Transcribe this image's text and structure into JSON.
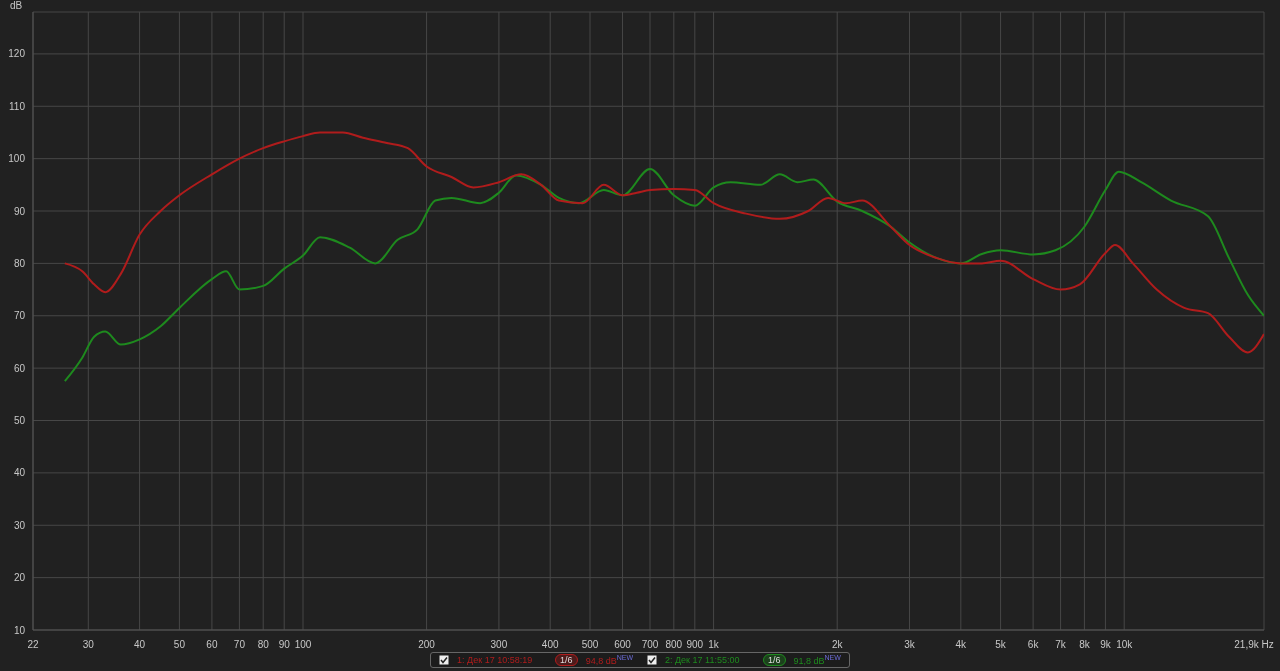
{
  "chart_data": {
    "type": "line",
    "ylabel": "dB",
    "xlim": [
      22,
      21900
    ],
    "ylim": [
      10,
      128
    ],
    "log": "x",
    "grid": true,
    "legend": "bottom",
    "marker": "none",
    "line_style": "solid",
    "xticks": [
      22,
      30,
      40,
      50,
      60,
      70,
      80,
      90,
      100,
      200,
      300,
      400,
      500,
      600,
      700,
      800,
      900,
      {
        "value": 1000,
        "label": "1k"
      },
      {
        "value": 2000,
        "label": "2k"
      },
      {
        "value": 3000,
        "label": "3k"
      },
      {
        "value": 4000,
        "label": "4k"
      },
      {
        "value": 5000,
        "label": "5k"
      },
      {
        "value": 6000,
        "label": "6k"
      },
      {
        "value": 7000,
        "label": "7k"
      },
      {
        "value": 8000,
        "label": "8k"
      },
      {
        "value": 9000,
        "label": "9k"
      },
      {
        "value": 10000,
        "label": "10k"
      },
      {
        "value": 21900,
        "label": "21,9k Hz"
      }
    ],
    "yticks": [
      10,
      20,
      30,
      40,
      50,
      60,
      70,
      80,
      90,
      100,
      110,
      120
    ],
    "annotations": [
      "1/6",
      "94,8 dB",
      "NEW",
      "1/6",
      "91,8 dB",
      "NEW"
    ],
    "series": [
      {
        "name": "1: Дек 17 10:58:19",
        "color": "#b01c1c",
        "x": [
          26.3,
          29,
          31,
          33,
          36,
          40,
          45,
          50,
          60,
          70,
          80,
          90,
          100,
          110,
          125,
          140,
          160,
          180,
          200,
          230,
          260,
          300,
          340,
          380,
          420,
          480,
          540,
          600,
          650,
          700,
          800,
          900,
          1000,
          1200,
          1450,
          1700,
          1900,
          2100,
          2300,
          2700,
          3000,
          3500,
          4000,
          4500,
          5000,
          6000,
          7000,
          7800,
          9000,
          9500,
          10500,
          12000,
          14000,
          16000,
          18000,
          20000,
          21900
        ],
        "values": [
          80,
          78.5,
          76,
          74.5,
          78,
          85.5,
          90,
          93,
          97,
          100,
          102,
          103.3,
          104.3,
          105,
          105,
          104,
          103,
          102,
          98.5,
          96.5,
          94.5,
          95.5,
          97,
          95,
          92,
          91.5,
          95,
          93,
          93.5,
          94,
          94.2,
          94,
          91.5,
          89.5,
          88.5,
          90,
          92.5,
          91.5,
          92,
          87,
          83.5,
          81,
          80,
          80,
          80.5,
          77,
          75,
          76,
          82,
          83.5,
          80,
          75,
          71.5,
          70.5,
          66,
          63,
          66.5
        ]
      },
      {
        "name": "2: Дек 17 11:55:00",
        "color": "#1e8a1e",
        "x": [
          26.3,
          29,
          31,
          33,
          36,
          40,
          45,
          50,
          60,
          65,
          70,
          80,
          90,
          100,
          110,
          130,
          150,
          170,
          190,
          210,
          230,
          270,
          300,
          330,
          380,
          420,
          470,
          540,
          600,
          700,
          800,
          900,
          1000,
          1100,
          1300,
          1450,
          1600,
          1750,
          2000,
          2300,
          2700,
          3000,
          3500,
          4000,
          4500,
          5000,
          6000,
          6800,
          8000,
          9000,
          9700,
          11000,
          13000,
          16000,
          18000,
          20000,
          21900
        ],
        "values": [
          57.5,
          62,
          66,
          67,
          64.5,
          65.5,
          68,
          71.5,
          77,
          78.5,
          75,
          75.7,
          79,
          81.5,
          85,
          83,
          80,
          84.5,
          86.5,
          92,
          92.5,
          91.5,
          93.5,
          96.8,
          95,
          92.5,
          91.5,
          94,
          93,
          98,
          93,
          91,
          94.5,
          95.5,
          95,
          97,
          95.5,
          96,
          91.8,
          90,
          87,
          84,
          81,
          80,
          81.8,
          82.5,
          81.7,
          82.5,
          87,
          94,
          97.5,
          95.5,
          92,
          89,
          81,
          74,
          70
        ]
      }
    ]
  }
}
